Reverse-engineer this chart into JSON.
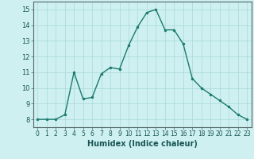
{
  "x": [
    0,
    1,
    2,
    3,
    4,
    5,
    6,
    7,
    8,
    9,
    10,
    11,
    12,
    13,
    14,
    15,
    16,
    17,
    18,
    19,
    20,
    21,
    22,
    23
  ],
  "y": [
    8,
    8,
    8,
    8.3,
    11,
    9.3,
    9.4,
    10.9,
    11.3,
    11.2,
    12.7,
    13.9,
    14.8,
    15,
    13.7,
    13.7,
    12.8,
    10.6,
    10.0,
    9.6,
    9.2,
    8.8,
    8.3,
    8.0
  ],
  "line_color": "#1a7a6e",
  "marker": "o",
  "marker_size": 2.0,
  "linewidth": 1.0,
  "bg_color": "#cef0f0",
  "grid_color": "#aad8d8",
  "xlabel": "Humidex (Indice chaleur)",
  "xlabel_fontsize": 7,
  "ylabel_ticks": [
    8,
    9,
    10,
    11,
    12,
    13,
    14,
    15
  ],
  "xlim": [
    -0.5,
    23.5
  ],
  "ylim": [
    7.5,
    15.5
  ],
  "xtick_fontsize": 5.5,
  "ytick_fontsize": 6.0
}
